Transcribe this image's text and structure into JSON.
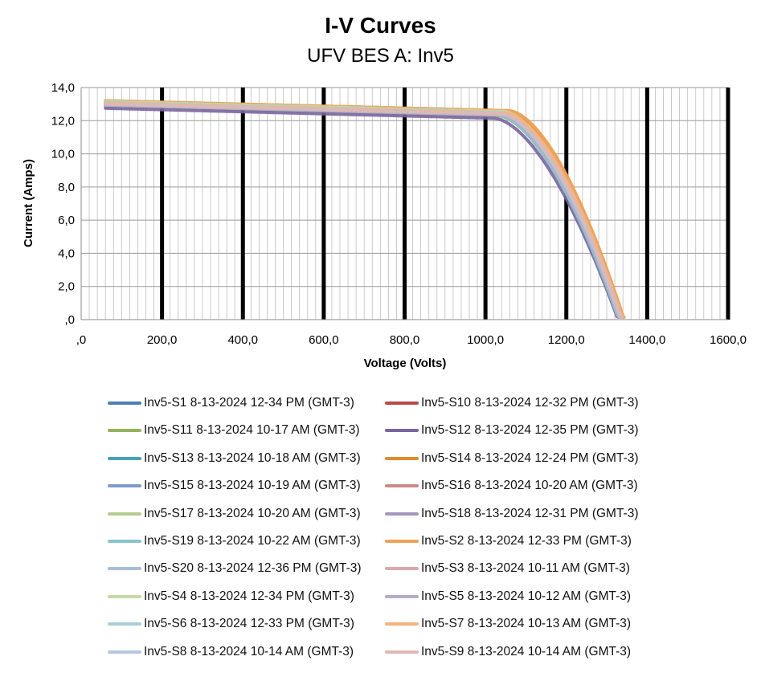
{
  "chart_data": {
    "type": "line",
    "title": "I-V Curves",
    "subtitle": "UFV BES A: Inv5",
    "xlabel": "Voltage (Volts)",
    "ylabel": "Current (Amps)",
    "xlim": [
      0,
      1600
    ],
    "ylim": [
      0,
      14
    ],
    "x_ticks": [
      ",0",
      "200,0",
      "400,0",
      "600,0",
      "800,0",
      "1000,0",
      "1200,0",
      "1400,0",
      "1600,0"
    ],
    "y_ticks": [
      ",0",
      "2,0",
      "4,0",
      "6,0",
      "8,0",
      "10,0",
      "12,0",
      "14,0"
    ],
    "grid": true,
    "legend_position": "bottom",
    "series": [
      {
        "name": "Inv5-S1 8-13-2024 12-34 PM (GMT-3)",
        "color": "#4a7fb5",
        "isc": 13.1,
        "vknee": 1040,
        "voc": 1335
      },
      {
        "name": "Inv5-S10 8-13-2024 12-32 PM (GMT-3)",
        "color": "#b84a47",
        "isc": 13.15,
        "vknee": 1050,
        "voc": 1340
      },
      {
        "name": "Inv5-S11 8-13-2024 10-17 AM (GMT-3)",
        "color": "#94b35a",
        "isc": 12.9,
        "vknee": 1030,
        "voc": 1330
      },
      {
        "name": "Inv5-S12 8-13-2024 12-35 PM (GMT-3)",
        "color": "#7a64a0",
        "isc": 12.75,
        "vknee": 1020,
        "voc": 1328
      },
      {
        "name": "Inv5-S13 8-13-2024 10-18 AM (GMT-3)",
        "color": "#43a2b8",
        "isc": 12.95,
        "vknee": 1032,
        "voc": 1332
      },
      {
        "name": "Inv5-S14 8-13-2024 12-24 PM (GMT-3)",
        "color": "#e3892e",
        "isc": 13.2,
        "vknee": 1055,
        "voc": 1342
      },
      {
        "name": "Inv5-S15 8-13-2024 10-19 AM (GMT-3)",
        "color": "#7f9cc9",
        "isc": 12.95,
        "vknee": 1030,
        "voc": 1331
      },
      {
        "name": "Inv5-S16 8-13-2024 10-20 AM (GMT-3)",
        "color": "#cc8a87",
        "isc": 13.05,
        "vknee": 1045,
        "voc": 1338
      },
      {
        "name": "Inv5-S17 8-13-2024 10-20 AM (GMT-3)",
        "color": "#b4cc8e",
        "isc": 12.95,
        "vknee": 1033,
        "voc": 1332
      },
      {
        "name": "Inv5-S18 8-13-2024 12-31 PM (GMT-3)",
        "color": "#a397bd",
        "isc": 13.0,
        "vknee": 1040,
        "voc": 1336
      },
      {
        "name": "Inv5-S19 8-13-2024 10-22 AM (GMT-3)",
        "color": "#89c4cf",
        "isc": 12.95,
        "vknee": 1028,
        "voc": 1330
      },
      {
        "name": "Inv5-S2 8-13-2024 12-33 PM (GMT-3)",
        "color": "#f0a354",
        "isc": 13.2,
        "vknee": 1058,
        "voc": 1343
      },
      {
        "name": "Inv5-S20 8-13-2024 12-36 PM (GMT-3)",
        "color": "#a9bddb",
        "isc": 13.1,
        "vknee": 1042,
        "voc": 1337
      },
      {
        "name": "Inv5-S3 8-13-2024 10-11 AM (GMT-3)",
        "color": "#d9aaa7",
        "isc": 13.0,
        "vknee": 1040,
        "voc": 1336
      },
      {
        "name": "Inv5-S4 8-13-2024 12-34 PM (GMT-3)",
        "color": "#c6d9a9",
        "isc": 13.15,
        "vknee": 1045,
        "voc": 1338
      },
      {
        "name": "Inv5-S5 8-13-2024 10-12 AM (GMT-3)",
        "color": "#b3acc6",
        "isc": 12.95,
        "vknee": 1035,
        "voc": 1333
      },
      {
        "name": "Inv5-S6 8-13-2024 12-33 PM (GMT-3)",
        "color": "#a8cfd9",
        "isc": 13.1,
        "vknee": 1040,
        "voc": 1336
      },
      {
        "name": "Inv5-S7 8-13-2024 10-13 AM (GMT-3)",
        "color": "#f4b27c",
        "isc": 13.05,
        "vknee": 1050,
        "voc": 1340
      },
      {
        "name": "Inv5-S8 8-13-2024 10-14 AM (GMT-3)",
        "color": "#b7c6e0",
        "isc": 13.0,
        "vknee": 1038,
        "voc": 1335
      },
      {
        "name": "Inv5-S9 8-13-2024 10-14 AM (GMT-3)",
        "color": "#dfb7b5",
        "isc": 13.0,
        "vknee": 1042,
        "voc": 1337
      }
    ]
  }
}
